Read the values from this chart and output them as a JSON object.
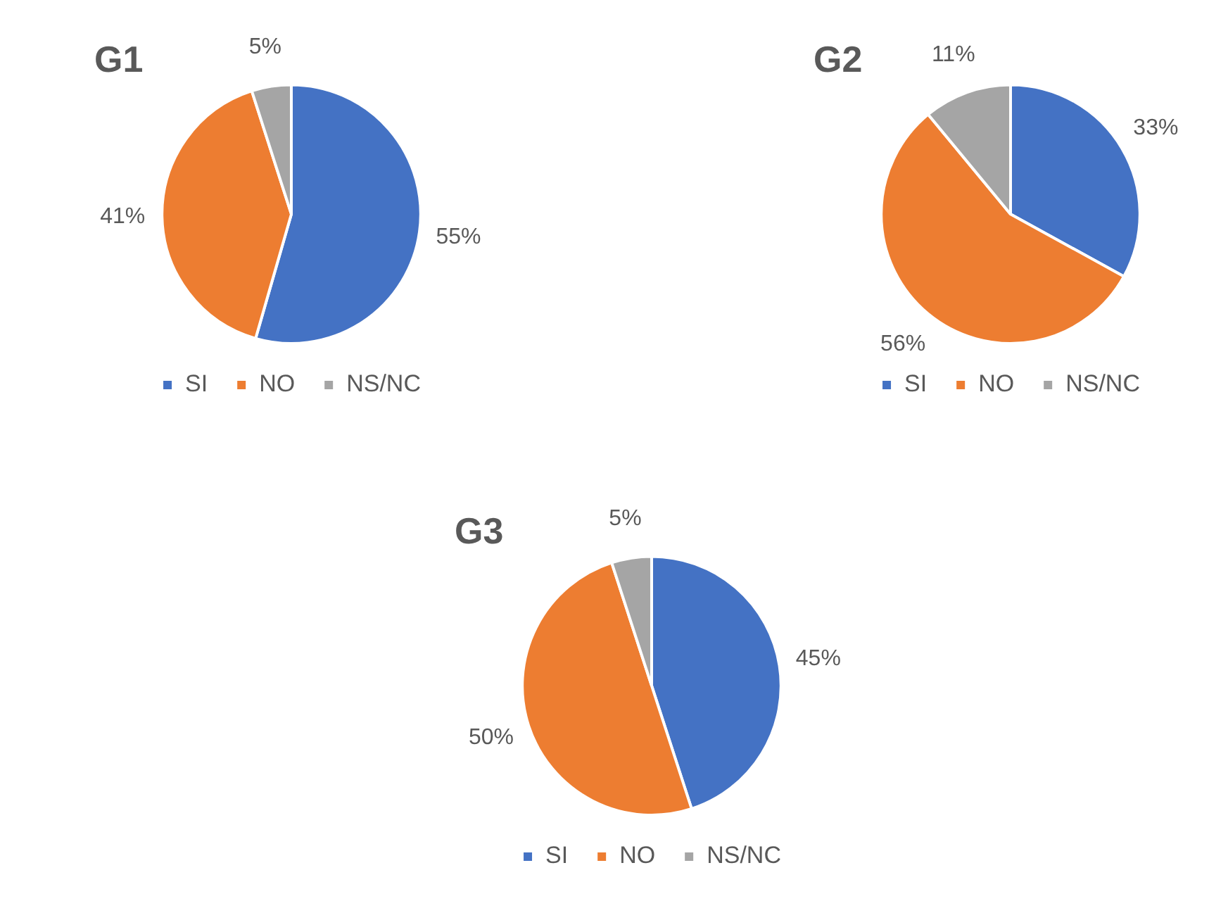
{
  "chart_data": [
    {
      "type": "pie",
      "title": "G1",
      "categories": [
        "SI",
        "NO",
        "NS/NC"
      ],
      "values": [
        55,
        41,
        5
      ],
      "value_labels": [
        "55%",
        "41%",
        "5%"
      ],
      "colors": [
        "#4472c4",
        "#ed7d31",
        "#a5a5a5"
      ],
      "legend": "bottom"
    },
    {
      "type": "pie",
      "title": "G2",
      "categories": [
        "SI",
        "NO",
        "NS/NC"
      ],
      "values": [
        33,
        56,
        11
      ],
      "value_labels": [
        "33%",
        "56%",
        "11%"
      ],
      "colors": [
        "#4472c4",
        "#ed7d31",
        "#a5a5a5"
      ],
      "legend": "bottom"
    },
    {
      "type": "pie",
      "title": "G3",
      "categories": [
        "SI",
        "NO",
        "NS/NC"
      ],
      "values": [
        45,
        50,
        5
      ],
      "value_labels": [
        "45%",
        "50%",
        "5%"
      ],
      "colors": [
        "#4472c4",
        "#ed7d31",
        "#a5a5a5"
      ],
      "legend": "bottom"
    }
  ]
}
